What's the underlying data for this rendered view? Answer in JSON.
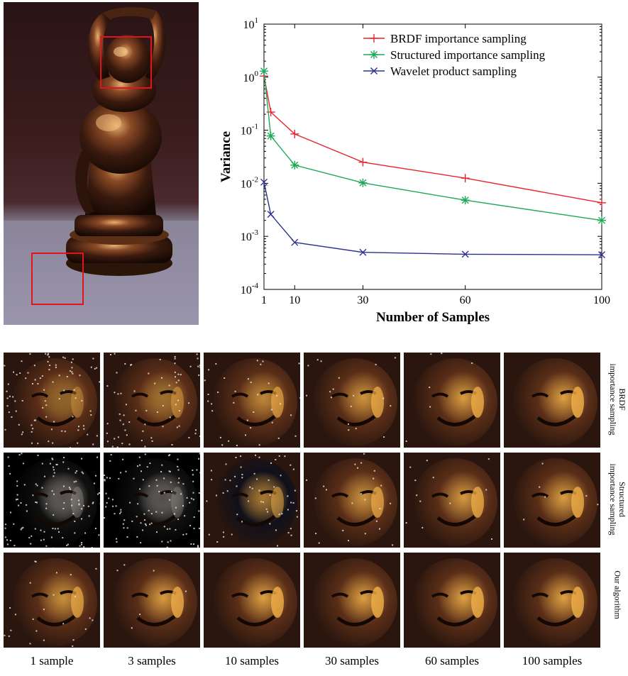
{
  "chart_data": {
    "type": "line",
    "title": "",
    "xlabel": "Number of Samples",
    "ylabel": "Variance",
    "yscale": "log",
    "ylim": [
      0.0001,
      10
    ],
    "xlim": [
      1,
      100
    ],
    "x_ticks": [
      "1",
      "10",
      "30",
      "60",
      "100"
    ],
    "y_ticks": [
      {
        "base": "10",
        "exp": "1"
      },
      {
        "base": "10",
        "exp": "0"
      },
      {
        "base": "10",
        "exp": "-1"
      },
      {
        "base": "10",
        "exp": "-2"
      },
      {
        "base": "10",
        "exp": "-3"
      },
      {
        "base": "10",
        "exp": "-4"
      }
    ],
    "legend_position": "top-right",
    "x": [
      1,
      3,
      10,
      30,
      60,
      100
    ],
    "series": [
      {
        "name": "BRDF importance sampling",
        "marker": "plus",
        "color": "#e8242c",
        "values": [
          1.05,
          0.22,
          0.085,
          0.025,
          0.0125,
          0.0043
        ]
      },
      {
        "name": "Structured importance sampling",
        "marker": "asterisk",
        "color": "#1ea858",
        "values": [
          1.3,
          0.078,
          0.022,
          0.0102,
          0.0048,
          0.002
        ]
      },
      {
        "name": "Wavelet product sampling",
        "marker": "x",
        "color": "#2d3290",
        "values": [
          0.0105,
          0.0026,
          0.00077,
          0.0005,
          0.00046,
          0.00045
        ]
      }
    ]
  },
  "grid": {
    "columns": [
      "1 sample",
      "3 samples",
      "10 samples",
      "30 samples",
      "60 samples",
      "100 samples"
    ],
    "rows": [
      {
        "line1": "BRDF",
        "line2": "importance sampling",
        "quality": [
          0.25,
          0.4,
          0.7,
          0.85,
          0.95,
          1.0
        ]
      },
      {
        "line1": "Structured",
        "line2": "importance sampling",
        "quality": [
          0.05,
          0.02,
          0.5,
          0.8,
          0.9,
          0.95
        ]
      },
      {
        "line1": "Our algorithm",
        "line2": "",
        "quality": [
          0.8,
          0.95,
          1.0,
          1.0,
          1.0,
          1.0
        ]
      }
    ]
  },
  "colors": {
    "highlight_box": "#e0141a",
    "bronze_dark": "#1a0c06",
    "bronze_mid": "#6a3a1c",
    "bronze_light": "#f0b04a"
  }
}
